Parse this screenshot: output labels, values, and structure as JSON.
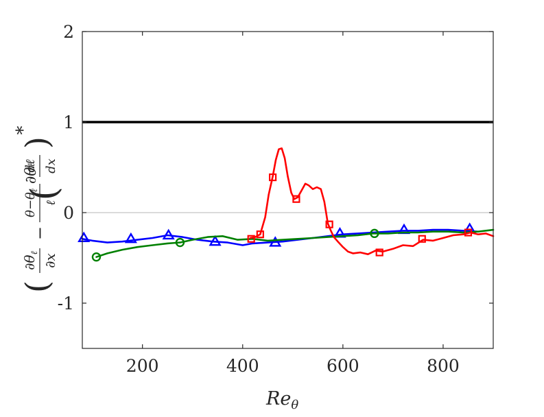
{
  "chart_data": {
    "type": "line",
    "xlim": [
      80,
      900
    ],
    "ylim": [
      -1.5,
      2
    ],
    "x_ticks": [
      200,
      400,
      600,
      800
    ],
    "x_tick_labels": [
      "200",
      "400",
      "600",
      "800"
    ],
    "y_ticks": [
      2,
      1,
      0,
      -1
    ],
    "y_tick_labels": [
      "2",
      "1",
      "0",
      "-1"
    ],
    "xlabel": "Reθ",
    "ylabel": "(∂θℓ/∂x − (θ−θℓ)/ℓ · dℓ/dx)*",
    "grid": false,
    "box": true,
    "reference_lines": [
      {
        "y": 1,
        "color": "#000000",
        "weight": "thick"
      },
      {
        "y": 0,
        "color": "#9e9e9e",
        "weight": "thin"
      }
    ],
    "series": [
      {
        "color": "#0000ff",
        "marker": "triangle",
        "x": [
          80,
          100,
          130,
          160,
          190,
          220,
          250,
          280,
          310,
          340,
          370,
          400,
          420,
          450,
          480,
          510,
          540,
          570,
          600,
          630,
          660,
          690,
          720,
          750,
          780,
          810,
          840,
          870
        ],
        "y": [
          -0.29,
          -0.31,
          -0.33,
          -0.32,
          -0.3,
          -0.28,
          -0.25,
          -0.27,
          -0.3,
          -0.32,
          -0.33,
          -0.36,
          -0.34,
          -0.33,
          -0.32,
          -0.3,
          -0.28,
          -0.26,
          -0.24,
          -0.23,
          -0.22,
          -0.21,
          -0.2,
          -0.2,
          -0.19,
          -0.19,
          -0.2,
          -0.21
        ],
        "markers_x": [
          83,
          177,
          252,
          345,
          465,
          594,
          722,
          853
        ],
        "markers_y": [
          -0.28,
          -0.29,
          -0.25,
          -0.32,
          -0.33,
          -0.23,
          -0.19,
          -0.18
        ]
      },
      {
        "color": "#008000",
        "marker": "circle",
        "x": [
          108,
          130,
          160,
          190,
          220,
          250,
          275,
          300,
          330,
          360,
          390,
          420,
          450,
          480,
          510,
          540,
          570,
          600,
          630,
          660,
          690,
          720,
          750,
          780,
          810,
          840,
          870,
          900
        ],
        "y": [
          -0.49,
          -0.45,
          -0.41,
          -0.38,
          -0.36,
          -0.34,
          -0.33,
          -0.3,
          -0.27,
          -0.26,
          -0.3,
          -0.29,
          -0.31,
          -0.3,
          -0.29,
          -0.28,
          -0.27,
          -0.26,
          -0.25,
          -0.23,
          -0.23,
          -0.22,
          -0.22,
          -0.21,
          -0.21,
          -0.22,
          -0.21,
          -0.19
        ],
        "markers_x": [
          108,
          275,
          663
        ],
        "markers_y": [
          -0.49,
          -0.33,
          -0.23
        ]
      },
      {
        "color": "#ff0000",
        "marker": "square",
        "x": [
          415,
          425,
          435,
          445,
          452,
          460,
          466,
          472,
          478,
          484,
          490,
          497,
          503,
          510,
          518,
          525,
          532,
          540,
          548,
          556,
          563,
          570,
          576,
          582,
          590,
          600,
          610,
          620,
          635,
          650,
          665,
          680,
          700,
          720,
          740,
          760,
          780,
          800,
          820,
          840,
          855,
          870,
          885,
          900
        ],
        "y": [
          -0.28,
          -0.27,
          -0.24,
          -0.05,
          0.2,
          0.4,
          0.58,
          0.7,
          0.71,
          0.6,
          0.4,
          0.22,
          0.15,
          0.17,
          0.25,
          0.32,
          0.3,
          0.26,
          0.28,
          0.26,
          0.12,
          -0.12,
          -0.2,
          -0.27,
          -0.32,
          -0.38,
          -0.43,
          -0.45,
          -0.44,
          -0.46,
          -0.42,
          -0.43,
          -0.4,
          -0.36,
          -0.37,
          -0.3,
          -0.31,
          -0.28,
          -0.25,
          -0.24,
          -0.22,
          -0.24,
          -0.23,
          -0.26
        ],
        "markers_x": [
          417,
          435,
          460,
          507,
          573,
          673,
          758,
          850
        ],
        "markers_y": [
          -0.29,
          -0.24,
          0.39,
          0.15,
          -0.13,
          -0.44,
          -0.29,
          -0.22
        ]
      }
    ]
  }
}
